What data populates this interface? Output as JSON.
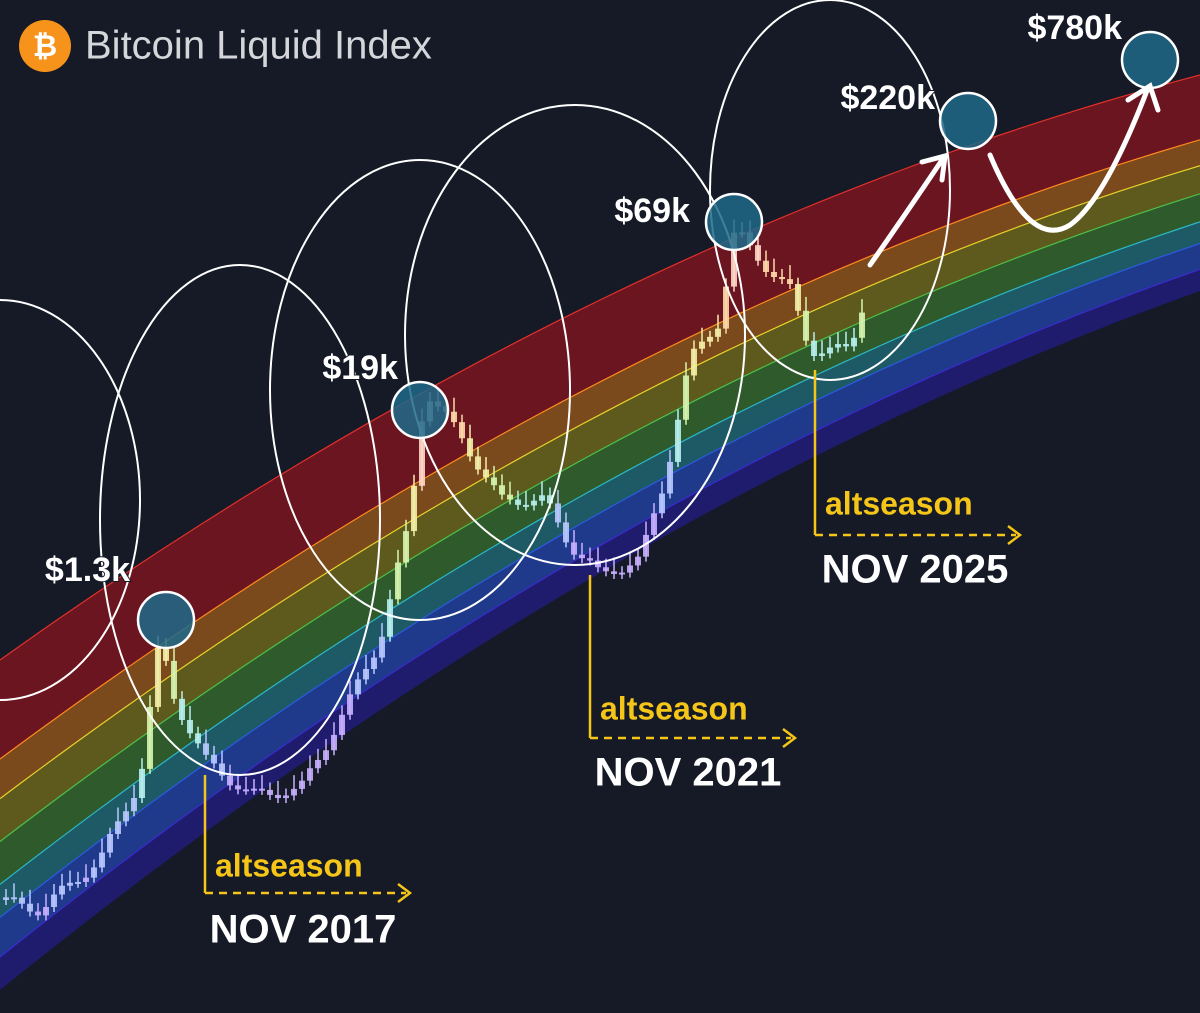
{
  "header": {
    "title": "Bitcoin Liquid Index"
  },
  "peaks": [
    "$1.3k",
    "$19k",
    "$69k",
    "$220k",
    "$780k"
  ],
  "altseasons": [
    {
      "label": "altseason",
      "date": "NOV 2017"
    },
    {
      "label": "altseason",
      "date": "NOV 2021"
    },
    {
      "label": "altseason",
      "date": "NOV 2025"
    }
  ]
}
